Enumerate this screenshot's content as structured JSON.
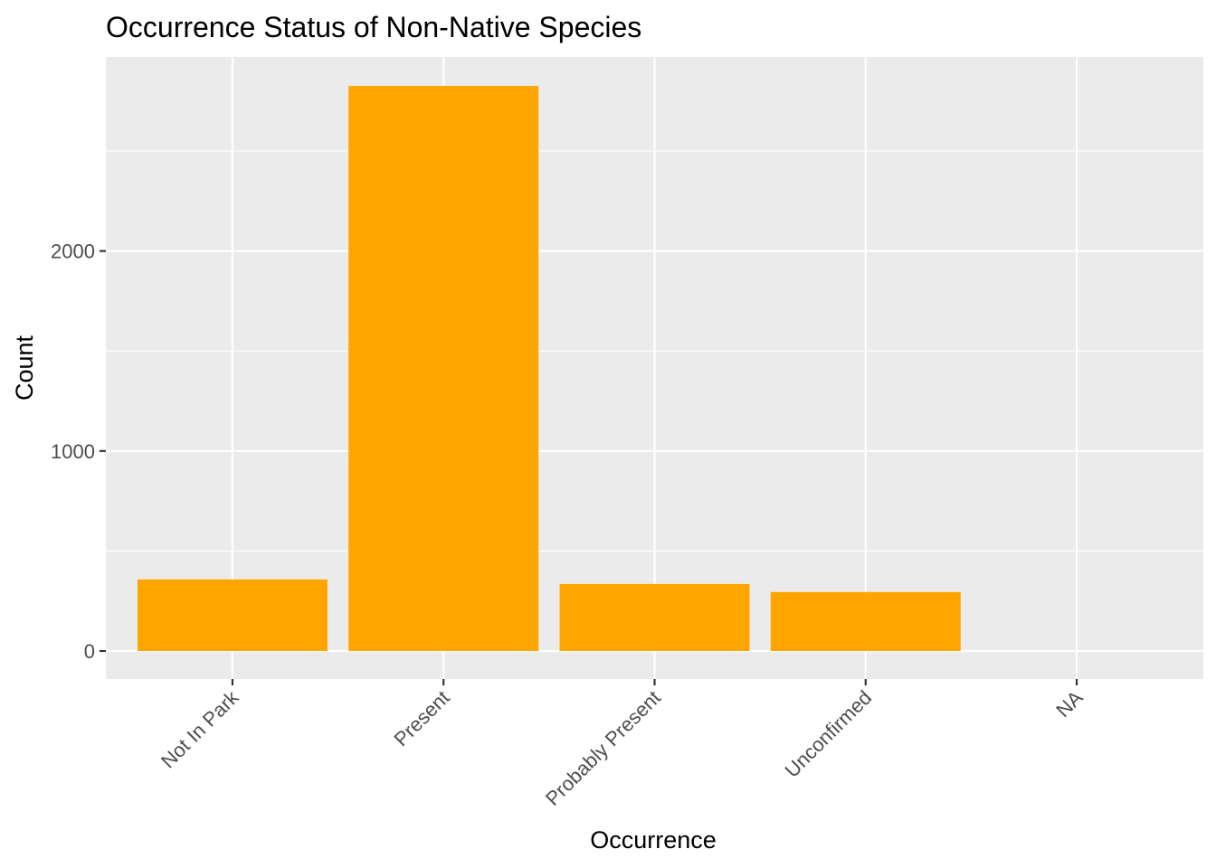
{
  "chart_data": {
    "type": "bar",
    "title": "Occurrence Status of Non-Native Species",
    "xlabel": "Occurrence",
    "ylabel": "Count",
    "categories": [
      "Not In Park",
      "Present",
      "Probably Present",
      "Unconfirmed",
      "NA"
    ],
    "values": [
      358,
      2825,
      335,
      295,
      0
    ],
    "y_ticks": [
      "0",
      "1000",
      "2000"
    ],
    "ylim": [
      -140,
      2970
    ],
    "grid": true,
    "legend": "none",
    "colors": {
      "bar": "#FFA500",
      "panel": "#EBEBEB",
      "grid": "#FFFFFF",
      "tick": "#333333"
    }
  }
}
